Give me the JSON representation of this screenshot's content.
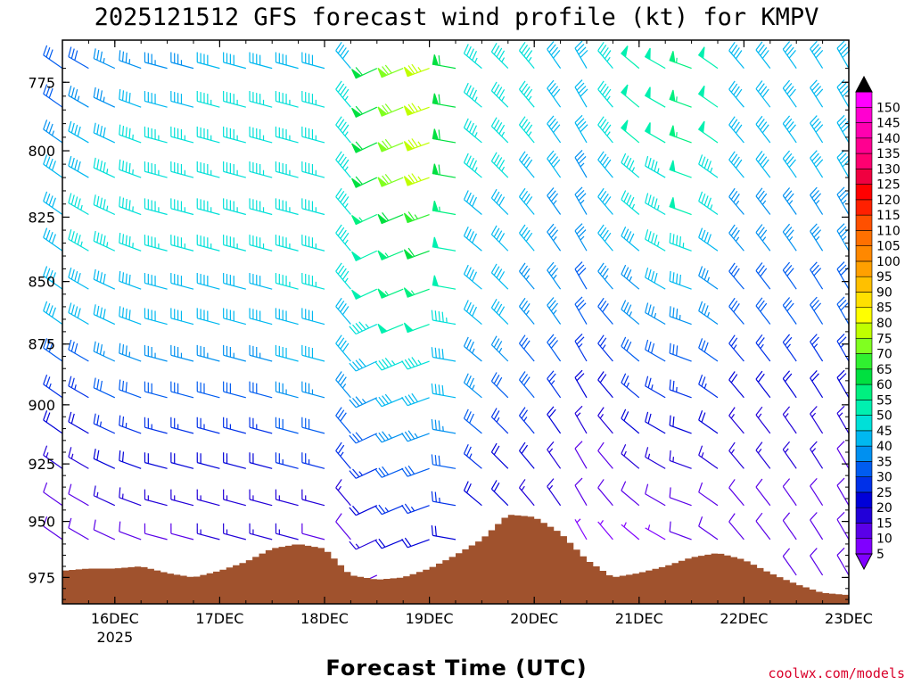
{
  "chart_data": {
    "type": "wind-barb-time-height",
    "title": "2025121512 GFS forecast wind profile (kt) for KMPV",
    "xlabel": "Forecast Time (UTC)",
    "ylabel": "",
    "credit": "coolwx.com/models",
    "x_ticks": [
      "16DEC",
      "17DEC",
      "18DEC",
      "19DEC",
      "20DEC",
      "21DEC",
      "22DEC",
      "23DEC"
    ],
    "x_year_label": "2025",
    "x_range": [
      "15DEC 12Z",
      "23DEC 00Z"
    ],
    "y_ticks": [
      775,
      800,
      825,
      850,
      875,
      900,
      925,
      950,
      975
    ],
    "y_range_hpa": [
      987,
      760
    ],
    "y_scale": "log-pressure",
    "colorbar_ticks": [
      5,
      10,
      15,
      20,
      25,
      30,
      35,
      40,
      45,
      50,
      55,
      60,
      65,
      70,
      75,
      80,
      85,
      90,
      95,
      100,
      105,
      110,
      115,
      120,
      125,
      130,
      135,
      140,
      145,
      150
    ],
    "colorbar_colors": [
      "#8000ff",
      "#5a00e8",
      "#2200d8",
      "#0000d8",
      "#0030e8",
      "#005cf0",
      "#0090f0",
      "#00b8f0",
      "#00e0d8",
      "#00f0b0",
      "#00f080",
      "#00e040",
      "#30f030",
      "#80ff20",
      "#c0ff00",
      "#ffff00",
      "#ffe000",
      "#ffc000",
      "#ffa000",
      "#ff8800",
      "#ff7000",
      "#ff5000",
      "#ff2000",
      "#ff0000",
      "#f00040",
      "#ff0070",
      "#ff0090",
      "#ff00b0",
      "#ff00d0",
      "#ff00ff"
    ],
    "barb_levels_hpa": [
      770,
      784,
      797,
      810,
      824,
      838,
      853,
      867,
      882,
      897,
      912,
      927,
      943,
      958,
      974
    ],
    "timeline": [
      {
        "hours": 0,
        "direction": 305,
        "wind_kt": [
          30,
          30,
          35,
          40,
          42,
          42,
          42,
          38,
          30,
          25,
          20,
          15,
          10,
          8,
          8
        ]
      },
      {
        "hours": 24,
        "direction": 285,
        "wind_kt": [
          35,
          40,
          45,
          45,
          45,
          45,
          42,
          40,
          35,
          30,
          25,
          20,
          15,
          10,
          10
        ]
      },
      {
        "hours": 48,
        "direction": 285,
        "wind_kt": [
          40,
          45,
          45,
          45,
          45,
          45,
          40,
          40,
          35,
          30,
          25,
          20,
          15,
          15,
          15
        ]
      },
      {
        "hours": 60,
        "direction": 285,
        "wind_kt": [
          40,
          45,
          45,
          45,
          45,
          45,
          45,
          40,
          40,
          35,
          30,
          25,
          15,
          10,
          10
        ]
      },
      {
        "hours": 66,
        "direction": 320,
        "wind_kt": [
          40,
          45,
          45,
          45,
          45,
          45,
          45,
          40,
          40,
          35,
          30,
          25,
          15,
          10,
          10
        ]
      },
      {
        "hours": 72,
        "direction": 245,
        "wind_kt": [
          60,
          60,
          60,
          60,
          55,
          50,
          50,
          45,
          40,
          35,
          30,
          25,
          20,
          15,
          10
        ]
      },
      {
        "hours": 84,
        "direction": 250,
        "wind_kt": [
          75,
          75,
          75,
          75,
          65,
          60,
          55,
          50,
          45,
          40,
          35,
          30,
          25,
          20,
          15
        ]
      },
      {
        "hours": 96,
        "direction": 310,
        "wind_kt": [
          45,
          45,
          45,
          45,
          40,
          40,
          40,
          40,
          35,
          35,
          30,
          25,
          20,
          15,
          10
        ]
      },
      {
        "hours": 120,
        "direction": 330,
        "wind_kt": [
          40,
          40,
          40,
          35,
          35,
          35,
          30,
          30,
          25,
          20,
          15,
          10,
          10,
          5,
          5
        ]
      },
      {
        "hours": 144,
        "direction": 290,
        "wind_kt": [
          55,
          55,
          55,
          50,
          50,
          45,
          40,
          35,
          30,
          25,
          20,
          15,
          10,
          8,
          5
        ]
      },
      {
        "hours": 156,
        "direction": 320,
        "wind_kt": [
          40,
          40,
          40,
          40,
          35,
          35,
          30,
          30,
          25,
          20,
          15,
          15,
          10,
          10,
          10
        ]
      },
      {
        "hours": 180,
        "direction": 330,
        "wind_kt": [
          40,
          40,
          40,
          40,
          35,
          35,
          30,
          30,
          25,
          20,
          15,
          12,
          10,
          10,
          10
        ]
      }
    ],
    "terrain_hpa": [
      {
        "hours": 0,
        "p": 972
      },
      {
        "hours": 6,
        "p": 971
      },
      {
        "hours": 12,
        "p": 971
      },
      {
        "hours": 18,
        "p": 970
      },
      {
        "hours": 24,
        "p": 973
      },
      {
        "hours": 30,
        "p": 975
      },
      {
        "hours": 36,
        "p": 972
      },
      {
        "hours": 42,
        "p": 968
      },
      {
        "hours": 48,
        "p": 962
      },
      {
        "hours": 54,
        "p": 960
      },
      {
        "hours": 60,
        "p": 962
      },
      {
        "hours": 66,
        "p": 974
      },
      {
        "hours": 72,
        "p": 976
      },
      {
        "hours": 78,
        "p": 975
      },
      {
        "hours": 84,
        "p": 971
      },
      {
        "hours": 90,
        "p": 965
      },
      {
        "hours": 96,
        "p": 958
      },
      {
        "hours": 102,
        "p": 947
      },
      {
        "hours": 108,
        "p": 948
      },
      {
        "hours": 114,
        "p": 955
      },
      {
        "hours": 120,
        "p": 967
      },
      {
        "hours": 126,
        "p": 975
      },
      {
        "hours": 132,
        "p": 973
      },
      {
        "hours": 138,
        "p": 970
      },
      {
        "hours": 144,
        "p": 966
      },
      {
        "hours": 150,
        "p": 964
      },
      {
        "hours": 156,
        "p": 967
      },
      {
        "hours": 162,
        "p": 973
      },
      {
        "hours": 168,
        "p": 978
      },
      {
        "hours": 174,
        "p": 982
      },
      {
        "hours": 180,
        "p": 983
      }
    ]
  }
}
